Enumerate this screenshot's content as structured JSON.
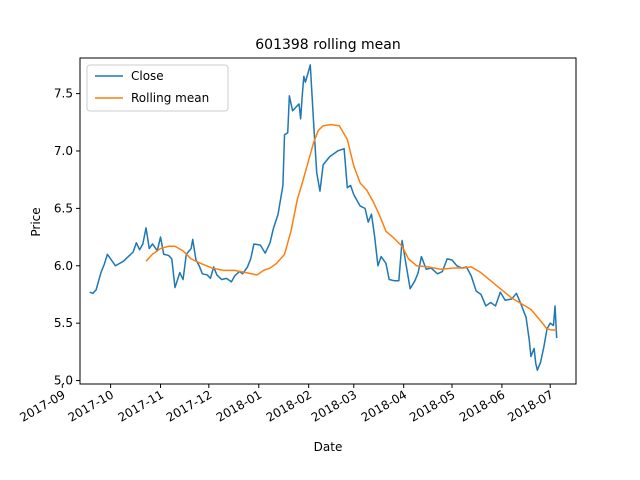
{
  "chart_data": {
    "type": "line",
    "title": "601398 rolling mean",
    "xlabel": "Date",
    "ylabel": "Price",
    "xlim": [
      "2017-09-12",
      "2018-07-17"
    ],
    "ylim": [
      4.97,
      7.81
    ],
    "x_ticks": [
      "2017-09-01",
      "2017-10-01",
      "2017-11-01",
      "2017-12-01",
      "2018-01-01",
      "2018-02-01",
      "2018-03-01",
      "2018-04-01",
      "2018-05-01",
      "2018-06-01",
      "2018-07-01"
    ],
    "x_tick_labels": [
      "2017-09",
      "2017-10",
      "2017-11",
      "2017-12",
      "2018-01",
      "2018-02",
      "2018-03",
      "2018-04",
      "2018-05",
      "2018-06",
      "2018-07"
    ],
    "y_ticks": [
      5.0,
      5.5,
      6.0,
      6.5,
      7.0,
      7.5
    ],
    "y_tick_labels": [
      "5.0",
      "5.5",
      "6.0",
      "6.5",
      "7.0",
      "7.5"
    ],
    "grid": false,
    "legend_position": "top-left",
    "series": [
      {
        "name": "Close",
        "color": "#1f77b4",
        "points": [
          [
            "2017-09-18",
            5.77
          ],
          [
            "2017-09-20",
            5.76
          ],
          [
            "2017-09-22",
            5.79
          ],
          [
            "2017-09-25",
            5.94
          ],
          [
            "2017-09-27",
            6.01
          ],
          [
            "2017-09-29",
            6.1
          ],
          [
            "2017-10-02",
            6.04
          ],
          [
            "2017-10-04",
            6.0
          ],
          [
            "2017-10-09",
            6.04
          ],
          [
            "2017-10-12",
            6.08
          ],
          [
            "2017-10-15",
            6.12
          ],
          [
            "2017-10-17",
            6.2
          ],
          [
            "2017-10-19",
            6.14
          ],
          [
            "2017-10-21",
            6.19
          ],
          [
            "2017-10-23",
            6.33
          ],
          [
            "2017-10-25",
            6.15
          ],
          [
            "2017-10-27",
            6.19
          ],
          [
            "2017-10-30",
            6.13
          ],
          [
            "2017-11-01",
            6.25
          ],
          [
            "2017-11-03",
            6.1
          ],
          [
            "2017-11-06",
            6.09
          ],
          [
            "2017-11-08",
            6.06
          ],
          [
            "2017-11-10",
            5.81
          ],
          [
            "2017-11-13",
            5.94
          ],
          [
            "2017-11-15",
            5.88
          ],
          [
            "2017-11-17",
            6.1
          ],
          [
            "2017-11-20",
            6.15
          ],
          [
            "2017-11-21",
            6.23
          ],
          [
            "2017-11-23",
            6.05
          ],
          [
            "2017-11-25",
            6.0
          ],
          [
            "2017-11-27",
            5.93
          ],
          [
            "2017-11-30",
            5.92
          ],
          [
            "2017-12-02",
            5.89
          ],
          [
            "2017-12-04",
            5.99
          ],
          [
            "2017-12-06",
            5.92
          ],
          [
            "2017-12-09",
            5.88
          ],
          [
            "2017-12-12",
            5.89
          ],
          [
            "2017-12-15",
            5.86
          ],
          [
            "2017-12-17",
            5.91
          ],
          [
            "2017-12-20",
            5.95
          ],
          [
            "2017-12-22",
            5.93
          ],
          [
            "2017-12-25",
            5.99
          ],
          [
            "2017-12-27",
            6.06
          ],
          [
            "2017-12-29",
            6.19
          ],
          [
            "2018-01-02",
            6.18
          ],
          [
            "2018-01-05",
            6.11
          ],
          [
            "2018-01-08",
            6.2
          ],
          [
            "2018-01-10",
            6.32
          ],
          [
            "2018-01-13",
            6.45
          ],
          [
            "2018-01-16",
            6.7
          ],
          [
            "2018-01-17",
            7.14
          ],
          [
            "2018-01-19",
            7.16
          ],
          [
            "2018-01-20",
            7.48
          ],
          [
            "2018-01-22",
            7.35
          ],
          [
            "2018-01-24",
            7.38
          ],
          [
            "2018-01-26",
            7.41
          ],
          [
            "2018-01-27",
            7.28
          ],
          [
            "2018-01-28",
            7.48
          ],
          [
            "2018-01-29",
            7.65
          ],
          [
            "2018-01-30",
            7.6
          ],
          [
            "2018-02-01",
            7.7
          ],
          [
            "2018-02-02",
            7.75
          ],
          [
            "2018-02-04",
            7.26
          ],
          [
            "2018-02-06",
            6.81
          ],
          [
            "2018-02-08",
            6.65
          ],
          [
            "2018-02-10",
            6.88
          ],
          [
            "2018-02-14",
            6.95
          ],
          [
            "2018-02-19",
            7.0
          ],
          [
            "2018-02-23",
            7.02
          ],
          [
            "2018-02-25",
            6.68
          ],
          [
            "2018-02-27",
            6.7
          ],
          [
            "2018-03-01",
            6.62
          ],
          [
            "2018-03-03",
            6.57
          ],
          [
            "2018-03-05",
            6.52
          ],
          [
            "2018-03-08",
            6.5
          ],
          [
            "2018-03-10",
            6.38
          ],
          [
            "2018-03-12",
            6.45
          ],
          [
            "2018-03-14",
            6.25
          ],
          [
            "2018-03-16",
            6.0
          ],
          [
            "2018-03-18",
            6.08
          ],
          [
            "2018-03-21",
            6.02
          ],
          [
            "2018-03-23",
            5.88
          ],
          [
            "2018-03-26",
            5.87
          ],
          [
            "2018-03-29",
            5.87
          ],
          [
            "2018-03-31",
            6.22
          ],
          [
            "2018-04-02",
            6.05
          ],
          [
            "2018-04-05",
            5.8
          ],
          [
            "2018-04-08",
            5.87
          ],
          [
            "2018-04-10",
            5.94
          ],
          [
            "2018-04-12",
            6.08
          ],
          [
            "2018-04-15",
            5.97
          ],
          [
            "2018-04-18",
            5.98
          ],
          [
            "2018-04-22",
            5.93
          ],
          [
            "2018-04-25",
            5.95
          ],
          [
            "2018-04-28",
            6.06
          ],
          [
            "2018-05-01",
            6.05
          ],
          [
            "2018-05-04",
            6.0
          ],
          [
            "2018-05-07",
            5.98
          ],
          [
            "2018-05-10",
            5.99
          ],
          [
            "2018-05-13",
            5.91
          ],
          [
            "2018-05-16",
            5.78
          ],
          [
            "2018-05-19",
            5.75
          ],
          [
            "2018-05-22",
            5.65
          ],
          [
            "2018-05-25",
            5.68
          ],
          [
            "2018-05-28",
            5.65
          ],
          [
            "2018-05-31",
            5.77
          ],
          [
            "2018-06-03",
            5.7
          ],
          [
            "2018-06-07",
            5.71
          ],
          [
            "2018-06-10",
            5.76
          ],
          [
            "2018-06-13",
            5.66
          ],
          [
            "2018-06-16",
            5.55
          ],
          [
            "2018-06-18",
            5.35
          ],
          [
            "2018-06-19",
            5.21
          ],
          [
            "2018-06-21",
            5.28
          ],
          [
            "2018-06-22",
            5.15
          ],
          [
            "2018-06-23",
            5.09
          ],
          [
            "2018-06-25",
            5.16
          ],
          [
            "2018-06-27",
            5.29
          ],
          [
            "2018-06-29",
            5.45
          ],
          [
            "2018-07-01",
            5.5
          ],
          [
            "2018-07-03",
            5.48
          ],
          [
            "2018-07-04",
            5.65
          ],
          [
            "2018-07-05",
            5.37
          ]
        ]
      },
      {
        "name": "Rolling mean",
        "color": "#ff7f0e",
        "points": [
          [
            "2017-10-23",
            6.04
          ],
          [
            "2017-10-27",
            6.1
          ],
          [
            "2017-11-01",
            6.15
          ],
          [
            "2017-11-06",
            6.17
          ],
          [
            "2017-11-10",
            6.17
          ],
          [
            "2017-11-15",
            6.13
          ],
          [
            "2017-11-20",
            6.06
          ],
          [
            "2017-11-26",
            6.02
          ],
          [
            "2017-12-03",
            5.98
          ],
          [
            "2017-12-10",
            5.96
          ],
          [
            "2017-12-17",
            5.96
          ],
          [
            "2017-12-24",
            5.94
          ],
          [
            "2017-12-31",
            5.92
          ],
          [
            "2018-01-04",
            5.96
          ],
          [
            "2018-01-08",
            5.98
          ],
          [
            "2018-01-12",
            6.02
          ],
          [
            "2018-01-17",
            6.1
          ],
          [
            "2018-01-21",
            6.3
          ],
          [
            "2018-01-25",
            6.58
          ],
          [
            "2018-01-28",
            6.72
          ],
          [
            "2018-02-01",
            6.92
          ],
          [
            "2018-02-04",
            7.07
          ],
          [
            "2018-02-07",
            7.18
          ],
          [
            "2018-02-10",
            7.22
          ],
          [
            "2018-02-15",
            7.23
          ],
          [
            "2018-02-20",
            7.22
          ],
          [
            "2018-02-25",
            7.1
          ],
          [
            "2018-03-01",
            6.87
          ],
          [
            "2018-03-05",
            6.72
          ],
          [
            "2018-03-09",
            6.66
          ],
          [
            "2018-03-13",
            6.56
          ],
          [
            "2018-03-17",
            6.44
          ],
          [
            "2018-03-21",
            6.3
          ],
          [
            "2018-03-26",
            6.24
          ],
          [
            "2018-03-31",
            6.17
          ],
          [
            "2018-04-04",
            6.06
          ],
          [
            "2018-04-09",
            6.0
          ],
          [
            "2018-04-16",
            5.99
          ],
          [
            "2018-04-24",
            5.97
          ],
          [
            "2018-05-02",
            5.98
          ],
          [
            "2018-05-08",
            5.98
          ],
          [
            "2018-05-13",
            5.99
          ],
          [
            "2018-05-19",
            5.94
          ],
          [
            "2018-05-25",
            5.87
          ],
          [
            "2018-05-31",
            5.8
          ],
          [
            "2018-06-07",
            5.72
          ],
          [
            "2018-06-13",
            5.67
          ],
          [
            "2018-06-19",
            5.62
          ],
          [
            "2018-06-25",
            5.52
          ],
          [
            "2018-06-29",
            5.45
          ],
          [
            "2018-07-02",
            5.44
          ],
          [
            "2018-07-05",
            5.44
          ]
        ]
      }
    ]
  }
}
